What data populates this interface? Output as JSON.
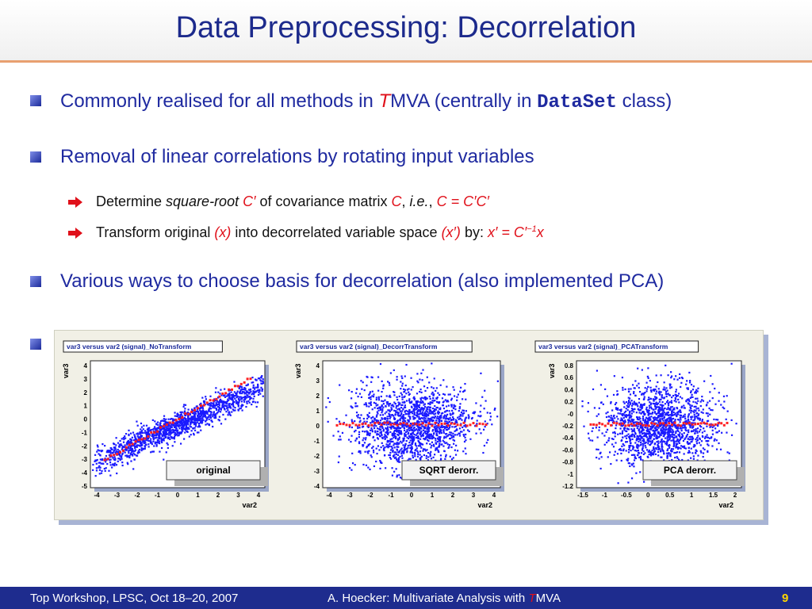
{
  "slide": {
    "title": "Data Preprocessing: Decorrelation"
  },
  "bullets": [
    {
      "pre": "Commonly realised for all methods in ",
      "t": "T",
      "mva": "MVA (centrally in ",
      "code": "DataSet",
      "post": " class)"
    },
    {
      "text": "Removal of linear correlations by rotating input variables"
    },
    {
      "text": "Various ways to choose basis for decorrelation (also implemented PCA)"
    }
  ],
  "subbullets": {
    "s1": {
      "a": "Determine ",
      "b": "square-root",
      "c": " C′",
      "d": " of covariance matrix ",
      "e": "C",
      "f": ", ",
      "g": "i.e.",
      "h": ", ",
      "i": "C = C′C′"
    },
    "s2": {
      "a": "Transform original ",
      "b": "(x)",
      "c": " into decorrelated variable space ",
      "d": "(x′)",
      "e": " by: ",
      "f": "x′ = C′",
      "g": "−1",
      "h": "x"
    }
  },
  "figure": {
    "panels": [
      {
        "title": "var3 versus var2 (signal)_NoTransform",
        "label": "original",
        "xlabel": "var2",
        "ylabel": "var3",
        "xticks": [
          "-4",
          "-3",
          "-2",
          "-1",
          "0",
          "1",
          "2",
          "3",
          "4"
        ],
        "yticks": [
          "4",
          "3",
          "2",
          "1",
          "0",
          "-1",
          "-2",
          "-3",
          "-4",
          "-5"
        ]
      },
      {
        "title": "var3 versus var2 (signal)_DecorrTransform",
        "label": "SQRT derorr.",
        "xlabel": "var2",
        "ylabel": "var3",
        "xticks": [
          "-4",
          "-3",
          "-2",
          "-1",
          "0",
          "1",
          "2",
          "3",
          "4"
        ],
        "yticks": [
          "4",
          "3",
          "2",
          "1",
          "0",
          "-1",
          "-2",
          "-3",
          "-4"
        ]
      },
      {
        "title": "var3 versus var2 (signal)_PCATransform",
        "label": "PCA derorr.",
        "xlabel": "var2",
        "ylabel": "var3",
        "xticks": [
          "-1.5",
          "-1",
          "-0.5",
          "0",
          "0.5",
          "1",
          "1.5",
          "2"
        ],
        "yticks": [
          "0.8",
          "0.6",
          "0.4",
          "0.2",
          "-0",
          "-0.2",
          "-0.4",
          "-0.6",
          "-0.8",
          "-1",
          "-1.2"
        ]
      }
    ]
  },
  "footer": {
    "left": "Top Workshop, LPSC, Oct 18–20, 2007",
    "center_pre": "A. Hoecker: Multivariate Analysis with ",
    "center_t": "T",
    "center_post": "MVA",
    "page": "9"
  },
  "colors": {
    "title": "#1c2a8c",
    "bullet_text": "#1f2aa0",
    "accent_red": "#e0101a",
    "footer_bg": "#1e2c8e",
    "page_number": "#ffd700",
    "points": "#1a1aff",
    "profile": "#ff2020"
  }
}
